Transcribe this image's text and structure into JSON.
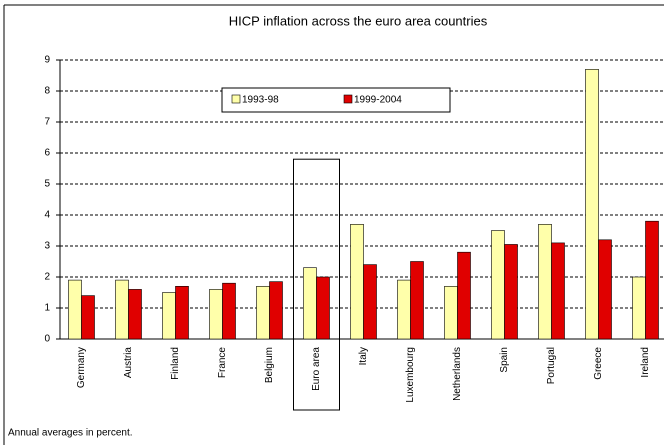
{
  "chart_data": {
    "type": "bar",
    "title": "HICP inflation across the euro area countries",
    "note": "Annual averages in percent.",
    "categories": [
      "Germany",
      "Austria",
      "Finland",
      "France",
      "Belgium",
      "Euro area",
      "Italy",
      "Luxembourg",
      "Netherlands",
      "Spain",
      "Portugal",
      "Greece",
      "Ireland"
    ],
    "series": [
      {
        "name": "1993-98",
        "color": "#ffffaa",
        "values": [
          1.9,
          1.9,
          1.5,
          1.6,
          1.7,
          2.3,
          3.7,
          1.9,
          1.7,
          3.5,
          3.7,
          8.7,
          2.0
        ]
      },
      {
        "name": "1999-2004",
        "color": "#e00000",
        "values": [
          1.4,
          1.6,
          1.7,
          1.8,
          1.85,
          2.0,
          2.4,
          2.5,
          2.8,
          3.05,
          3.1,
          3.2,
          3.8
        ]
      }
    ],
    "ylim": [
      0,
      9
    ],
    "yticks": [
      0,
      1,
      2,
      3,
      4,
      5,
      6,
      7,
      8,
      9
    ],
    "grid": true,
    "legend": "top",
    "highlight": "Euro area"
  }
}
